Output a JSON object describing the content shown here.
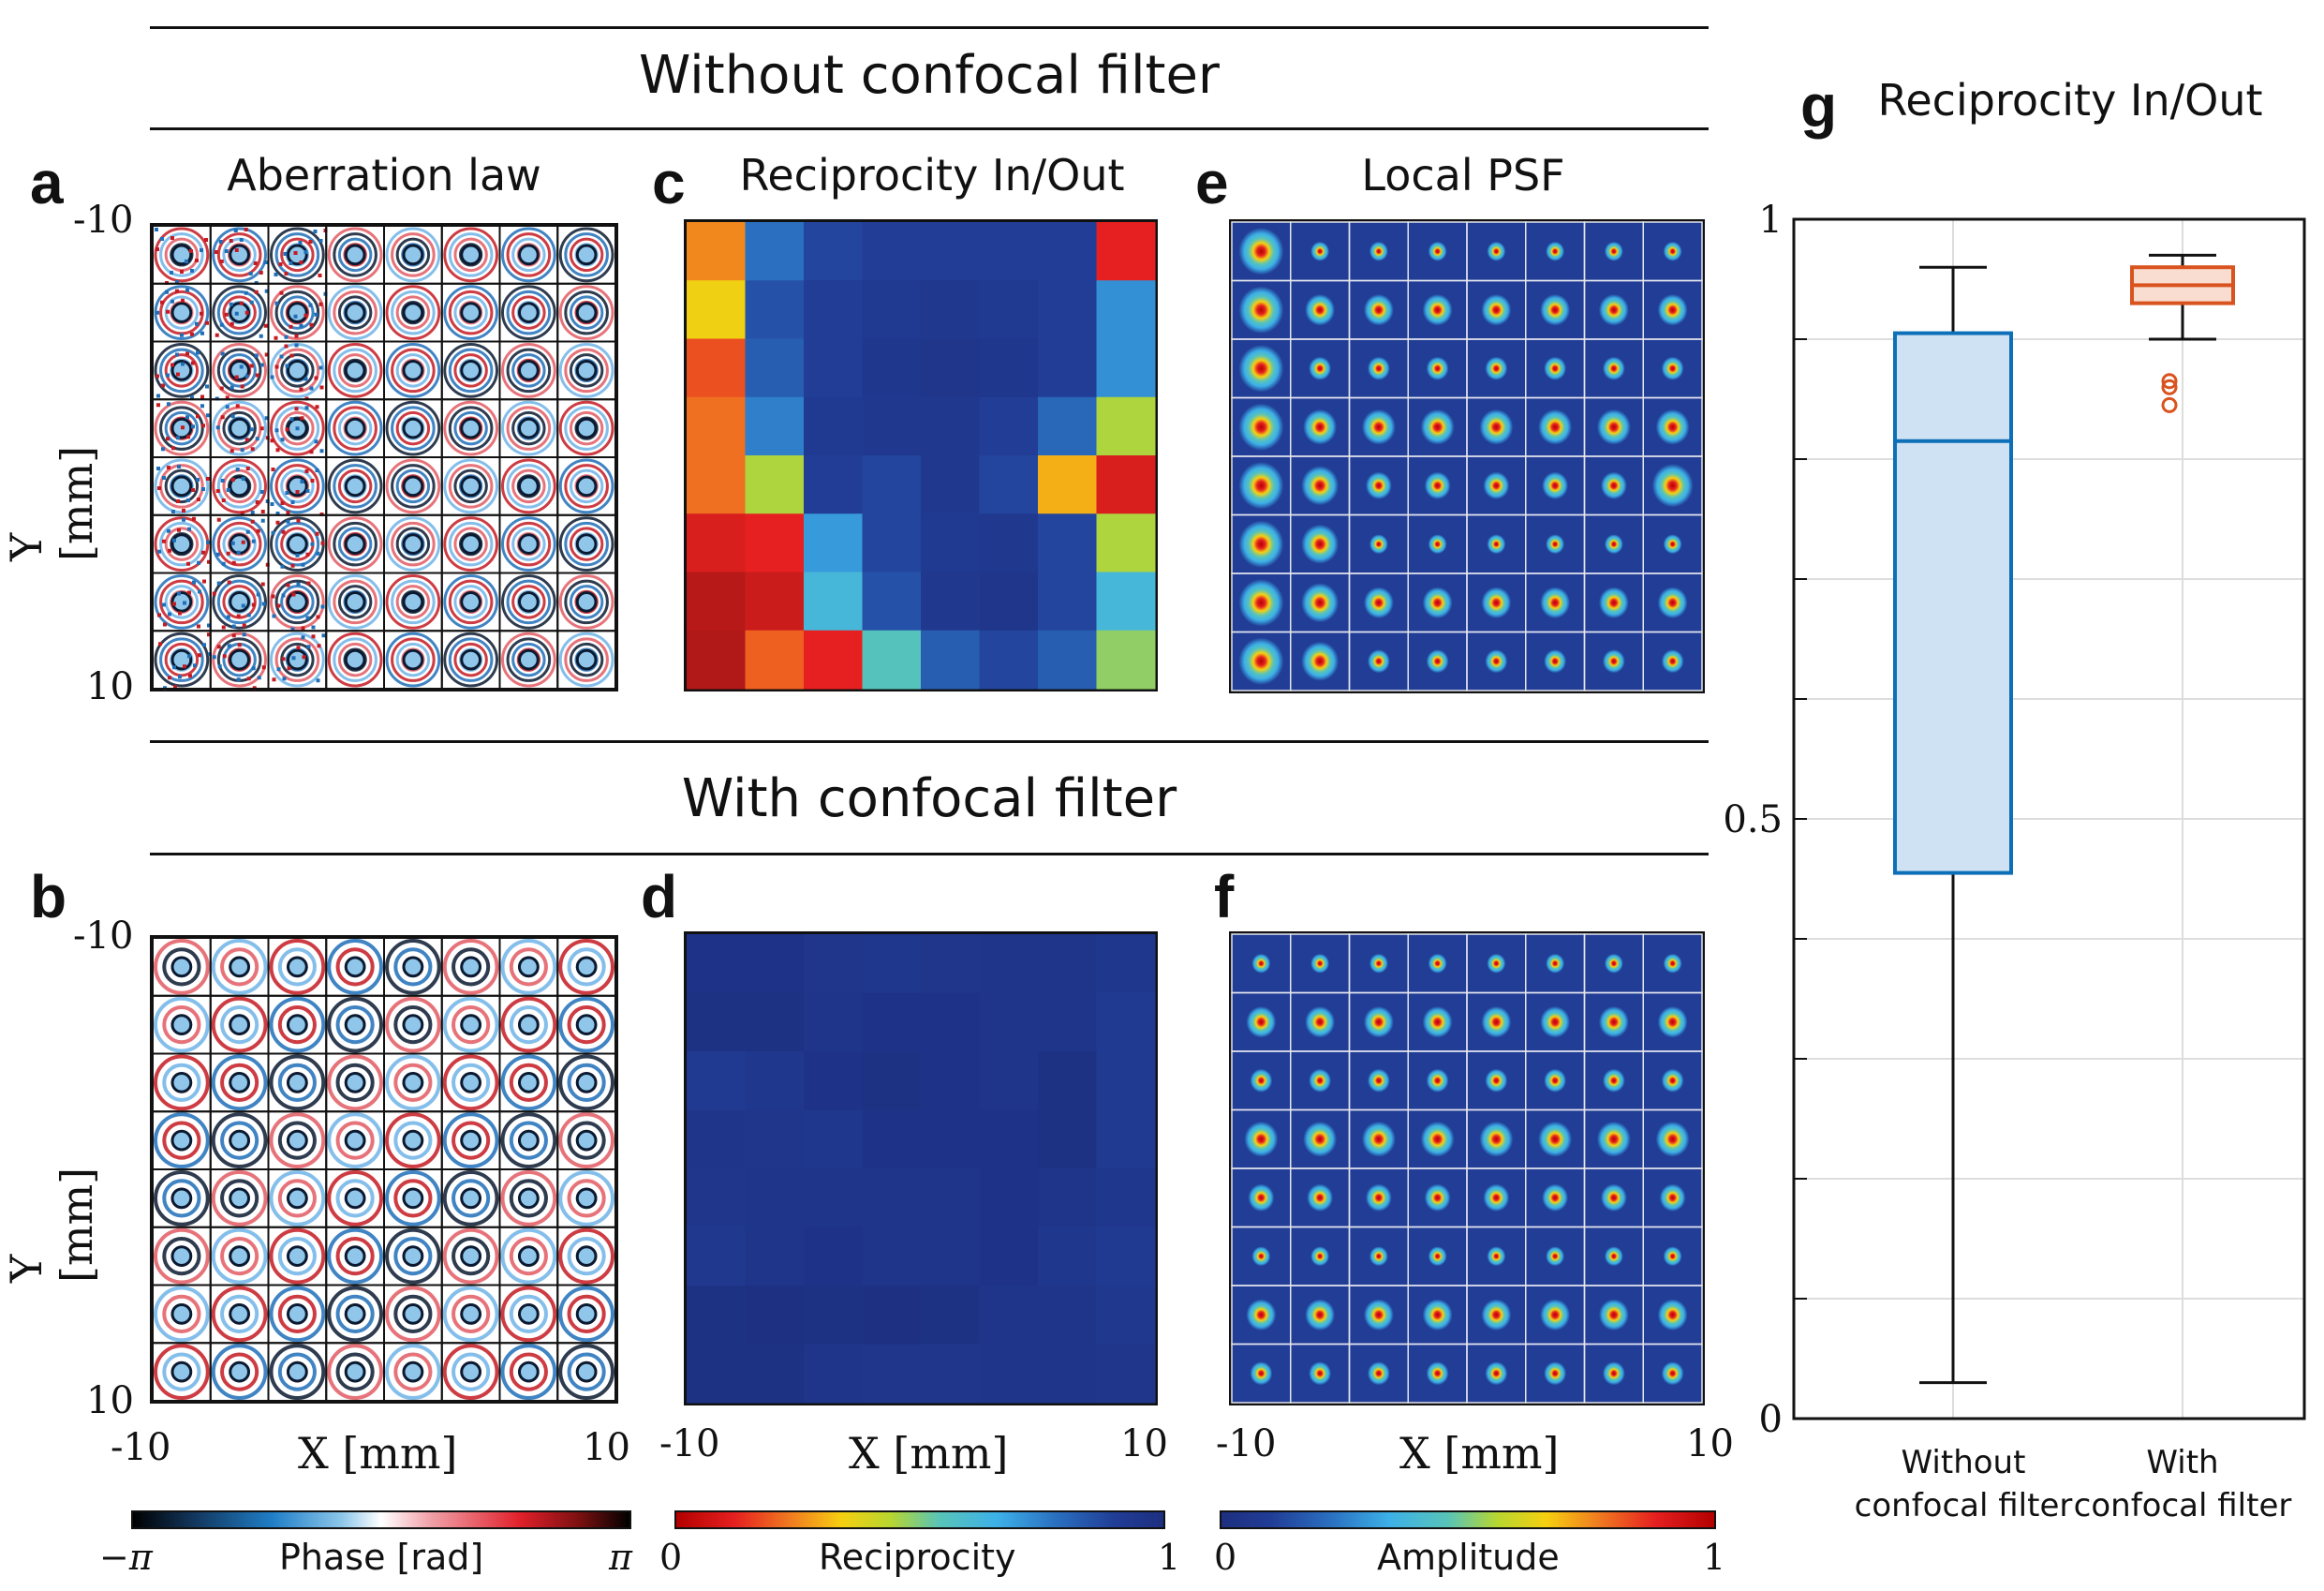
{
  "sections": {
    "top_title": "Without confocal filter",
    "bottom_title": "With confocal filter"
  },
  "letters": {
    "a": "a",
    "b": "b",
    "c": "c",
    "d": "d",
    "e": "e",
    "f": "f",
    "g": "g"
  },
  "panel_titles": {
    "a": "Aberration law",
    "c": "Reciprocity In/Out",
    "e": "Local PSF",
    "g": "Reciprocity In/Out"
  },
  "axes": {
    "ylabel": "Y [mm]",
    "xlabel": "X [mm]",
    "y_top_tick": "-10",
    "y_bottom_tick": "10",
    "x_left_tick": "-10",
    "x_right_tick": "10"
  },
  "colorbars": {
    "phase": {
      "label": "Phase [rad]",
      "min": "−π",
      "max": "π"
    },
    "reciprocity": {
      "label": "Reciprocity",
      "min": "0",
      "max": "1"
    },
    "amplitude": {
      "label": "Amplitude",
      "min": "0",
      "max": "1"
    }
  },
  "chart_data": [
    {
      "type": "heatmap",
      "panel": "c",
      "title": "Reciprocity In/Out",
      "colormap": "reversed jet (0 red, 1 dark blue)",
      "values": [
        [
          0.25,
          0.78,
          0.88,
          0.9,
          0.9,
          0.9,
          0.9,
          0.12
        ],
        [
          0.35,
          0.85,
          0.9,
          0.92,
          0.93,
          0.92,
          0.9,
          0.72
        ],
        [
          0.18,
          0.82,
          0.9,
          0.94,
          0.95,
          0.94,
          0.9,
          0.72
        ],
        [
          0.22,
          0.75,
          0.92,
          0.93,
          0.93,
          0.9,
          0.8,
          0.45
        ],
        [
          0.22,
          0.45,
          0.9,
          0.88,
          0.93,
          0.88,
          0.3,
          0.1
        ],
        [
          0.1,
          0.12,
          0.7,
          0.88,
          0.92,
          0.93,
          0.88,
          0.45
        ],
        [
          0.05,
          0.08,
          0.62,
          0.85,
          0.93,
          0.95,
          0.88,
          0.62
        ],
        [
          0.04,
          0.2,
          0.12,
          0.55,
          0.82,
          0.88,
          0.82,
          0.48
        ]
      ]
    },
    {
      "type": "heatmap",
      "panel": "d",
      "title": "",
      "colormap": "reversed jet (0 red, 1 dark blue)",
      "values": [
        [
          0.97,
          0.97,
          0.95,
          0.94,
          0.95,
          0.96,
          0.96,
          0.94
        ],
        [
          0.98,
          0.98,
          0.96,
          0.97,
          0.97,
          0.96,
          0.96,
          0.92
        ],
        [
          0.92,
          0.94,
          0.97,
          0.98,
          0.97,
          0.96,
          0.98,
          0.92
        ],
        [
          0.96,
          0.95,
          0.94,
          0.97,
          0.97,
          0.97,
          0.98,
          0.92
        ],
        [
          0.95,
          0.96,
          0.96,
          0.96,
          0.96,
          0.97,
          0.96,
          0.94
        ],
        [
          0.93,
          0.96,
          0.97,
          0.96,
          0.96,
          0.97,
          0.94,
          0.92
        ],
        [
          0.98,
          0.99,
          0.98,
          0.99,
          0.98,
          0.96,
          0.96,
          0.93
        ],
        [
          0.98,
          0.98,
          0.96,
          0.95,
          0.95,
          0.96,
          0.96,
          0.95
        ]
      ]
    },
    {
      "type": "box",
      "panel": "g",
      "title": "Reciprocity In/Out",
      "categories": [
        "Without\nconfocal filter",
        "With\nconfocal filter"
      ],
      "ylim": [
        0,
        1
      ],
      "yticks": [
        0,
        0.5,
        1
      ],
      "ytick_labels": [
        "0",
        "0.5",
        "1"
      ],
      "grid": true,
      "series": [
        {
          "whisker_low": 0.03,
          "q1": 0.455,
          "median": 0.815,
          "q3": 0.905,
          "whisker_high": 0.96,
          "outliers": [],
          "color": "#0d6fb8",
          "fill": "#cfe2f3"
        },
        {
          "whisker_low": 0.9,
          "q1": 0.93,
          "median": 0.945,
          "q3": 0.96,
          "whisker_high": 0.97,
          "outliers": [
            0.865,
            0.86,
            0.845
          ],
          "color": "#d9531e",
          "fill": "#f9ddd0"
        }
      ]
    }
  ]
}
